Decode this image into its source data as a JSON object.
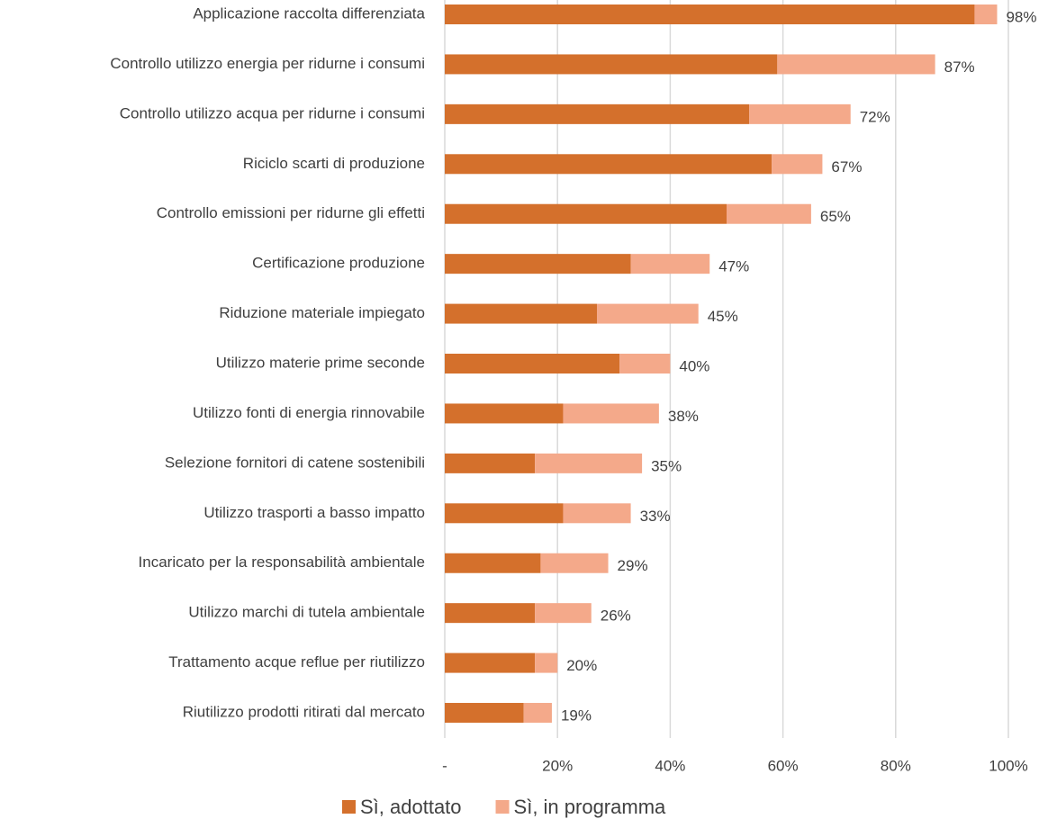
{
  "chart_data": {
    "type": "stacked-barh",
    "categories": [
      "Applicazione raccolta differenziata",
      "Controllo utilizzo energia per ridurne i consumi",
      "Controllo utilizzo acqua per ridurne i consumi",
      "Riciclo scarti di produzione",
      "Controllo emissioni per ridurne gli effetti",
      "Certificazione produzione",
      "Riduzione materiale impiegato",
      "Utilizzo materie prime seconde",
      "Utilizzo fonti di energia rinnovabile",
      "Selezione fornitori di catene sostenibili",
      "Utilizzo trasporti a basso impatto",
      "Incaricato per la responsabilità ambientale",
      "Utilizzo marchi di tutela ambientale",
      "Trattamento acque reflue per riutilizzo",
      "Riutilizzo prodotti ritirati dal mercato"
    ],
    "series": [
      {
        "name": "Sì, adottato",
        "color": "#d4702c",
        "values": [
          94,
          59,
          54,
          58,
          50,
          33,
          27,
          31,
          21,
          16,
          21,
          17,
          16,
          16,
          14
        ]
      },
      {
        "name": "Sì, in programma",
        "color": "#f4a98a",
        "values": [
          4,
          28,
          18,
          9,
          15,
          14,
          18,
          9,
          17,
          19,
          12,
          12,
          10,
          4,
          5
        ]
      }
    ],
    "totals": [
      98,
      87,
      72,
      67,
      65,
      47,
      45,
      40,
      38,
      35,
      33,
      29,
      26,
      20,
      19
    ],
    "total_labels": [
      "98%",
      "87%",
      "72%",
      "67%",
      "65%",
      "47%",
      "45%",
      "40%",
      "38%",
      "35%",
      "33%",
      "29%",
      "26%",
      "20%",
      "19%"
    ],
    "xlim": [
      0,
      100
    ],
    "xticks": [
      {
        "value": 0,
        "label": "-"
      },
      {
        "value": 20,
        "label": "20%"
      },
      {
        "value": 40,
        "label": "40%"
      },
      {
        "value": 60,
        "label": "60%"
      },
      {
        "value": 80,
        "label": "80%"
      },
      {
        "value": 100,
        "label": "100%"
      }
    ],
    "grid": true,
    "legend": "bottom"
  }
}
